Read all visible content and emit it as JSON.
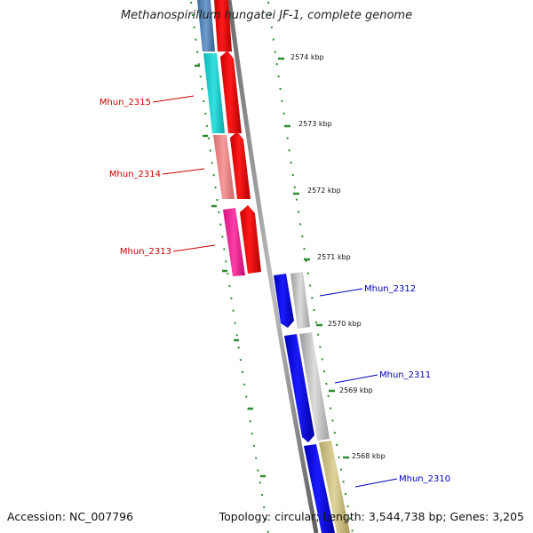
{
  "title": "Methanospirillum hungatei JF-1, complete genome",
  "accession": "Accession: NC_007796",
  "topology": "Topology: circular; Length: 3,544,738 bp; Genes: 3,205",
  "colors": {
    "forward_label": "#cc0000",
    "reverse_label": "#0000bb",
    "tick": "#2e8b2e",
    "backbone": "#888888"
  },
  "ticks": [
    {
      "label": "2574 kbp"
    },
    {
      "label": "2573 kbp"
    },
    {
      "label": "2572 kbp"
    },
    {
      "label": "2571 kbp"
    },
    {
      "label": "2570 kbp"
    },
    {
      "label": "2569 kbp"
    },
    {
      "label": "2568 kbp"
    }
  ],
  "genes": [
    {
      "name": "Mhun_2315",
      "strand": "forward"
    },
    {
      "name": "Mhun_2314",
      "strand": "forward"
    },
    {
      "name": "Mhun_2313",
      "strand": "forward"
    },
    {
      "name": "Mhun_2312",
      "strand": "reverse"
    },
    {
      "name": "Mhun_2311",
      "strand": "reverse"
    },
    {
      "name": "Mhun_2310",
      "strand": "reverse"
    }
  ]
}
